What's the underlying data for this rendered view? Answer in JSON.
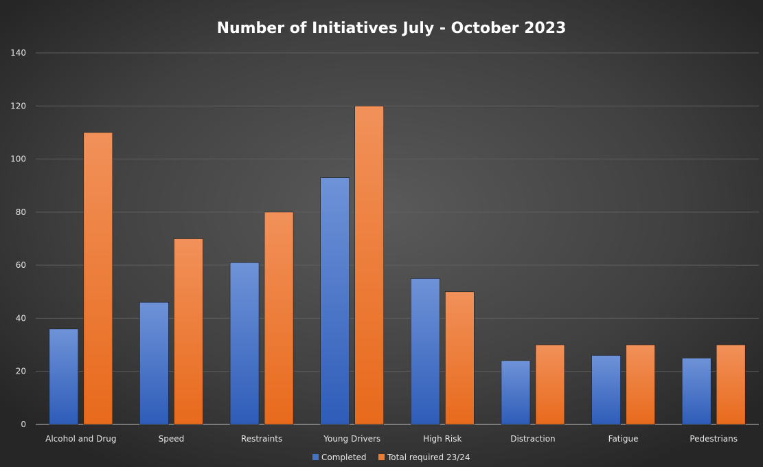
{
  "chart_data": {
    "type": "bar",
    "title": "Number of Initiatives July - October 2023",
    "categories": [
      "Alcohol and Drug",
      "Speed",
      "Restraints",
      "Young Drivers",
      "High Risk",
      "Distraction",
      "Fatigue",
      "Pedestrians"
    ],
    "series": [
      {
        "name": "Completed",
        "values": [
          36,
          46,
          61,
          93,
          55,
          24,
          26,
          25
        ],
        "color": "#4472C4"
      },
      {
        "name": "Total required 23/24",
        "values": [
          110,
          70,
          80,
          120,
          50,
          30,
          30,
          30
        ],
        "color": "#ED7D31"
      }
    ],
    "ylim": [
      0,
      140
    ],
    "yticks": [
      0,
      20,
      40,
      60,
      80,
      100,
      120,
      140
    ],
    "grid": true,
    "legend": "bottom"
  }
}
